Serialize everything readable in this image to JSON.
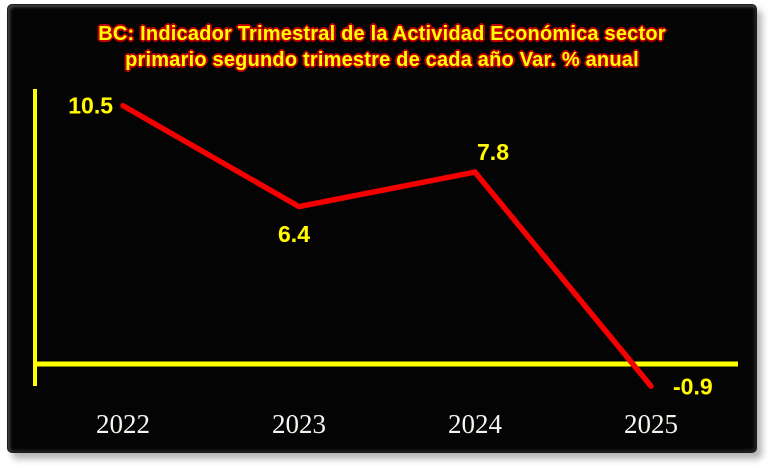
{
  "chart_data": {
    "type": "line",
    "title": "BC: Indicador Trimestral de la Actividad Económica sector primario segundo trimestre de cada año Var. % anual",
    "title_lines": [
      "BC: Indicador Trimestral de la Actividad Económica sector",
      "primario segundo trimestre de cada año Var. % anual"
    ],
    "categories": [
      "2022",
      "2023",
      "2024",
      "2025"
    ],
    "values": [
      10.5,
      6.4,
      7.8,
      -0.9
    ],
    "data_labels": [
      "10.5",
      "6.4",
      "7.8",
      "-0.9"
    ],
    "label_positions": [
      "left",
      "below",
      "above",
      "right"
    ],
    "xlabel": "",
    "ylabel": "",
    "ylim": [
      -2,
      11.5
    ],
    "grid": false,
    "legend": "none",
    "colors": {
      "line": "#f40000",
      "axis": "#ffff00",
      "data_label": "#ffff00",
      "title_fill": "#ffff00",
      "title_outline": "#c00000",
      "category_label": "#f4f4ef",
      "plot_background": "#040404",
      "page_background": "#ffffff"
    }
  }
}
